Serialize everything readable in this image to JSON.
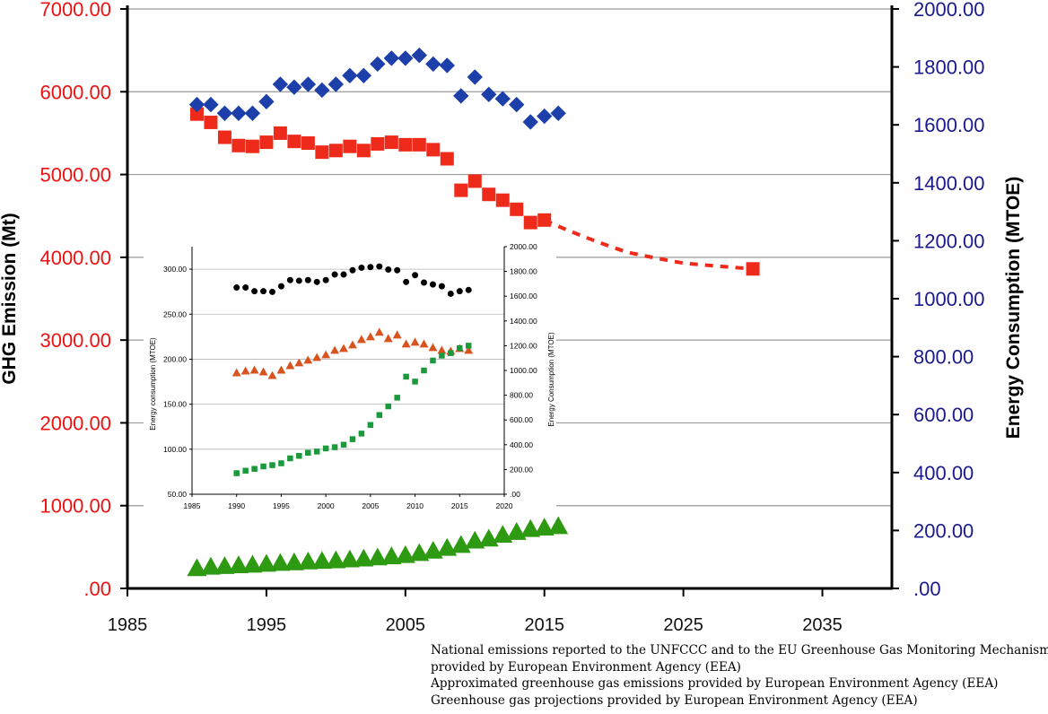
{
  "chart_data": [
    {
      "type": "scatter",
      "xlim": [
        1985,
        2040
      ],
      "x_ticks": [
        "1985",
        "1995",
        "2005",
        "2015",
        "2025",
        "2035"
      ],
      "y_left": {
        "label": "GHG Emission (Mt)",
        "lim": [
          0,
          7000
        ],
        "ticks": [
          ".00",
          "1000.00",
          "2000.00",
          "3000.00",
          "4000.00",
          "5000.00",
          "6000.00",
          "7000.00"
        ],
        "color": "#ee1111"
      },
      "y_right": {
        "label": "Energy Consumption (MTOE)",
        "lim": [
          0,
          2000
        ],
        "ticks": [
          ".00",
          "200.00",
          "400.00",
          "600.00",
          "800.00",
          "1000.00",
          "1200.00",
          "1400.00",
          "1600.00",
          "1800.00",
          "2000.00"
        ],
        "color": "#1a1a8c"
      },
      "grid": "horizontal",
      "series": [
        {
          "axis": "left",
          "marker": "square",
          "color": "#ee2a1a",
          "points": [
            [
              1990,
              5730
            ],
            [
              1991,
              5630
            ],
            [
              1992,
              5450
            ],
            [
              1993,
              5350
            ],
            [
              1994,
              5340
            ],
            [
              1995,
              5390
            ],
            [
              1996,
              5500
            ],
            [
              1997,
              5400
            ],
            [
              1998,
              5380
            ],
            [
              1999,
              5270
            ],
            [
              2000,
              5290
            ],
            [
              2001,
              5340
            ],
            [
              2002,
              5290
            ],
            [
              2003,
              5370
            ],
            [
              2004,
              5390
            ],
            [
              2005,
              5360
            ],
            [
              2006,
              5360
            ],
            [
              2007,
              5300
            ],
            [
              2008,
              5190
            ],
            [
              2009,
              4810
            ],
            [
              2010,
              4920
            ],
            [
              2011,
              4760
            ],
            [
              2012,
              4690
            ],
            [
              2013,
              4580
            ],
            [
              2014,
              4420
            ],
            [
              2015,
              4450
            ]
          ]
        },
        {
          "axis": "left",
          "marker": "square",
          "color": "#ee2a1a",
          "points": [
            [
              2030,
              3860
            ]
          ]
        },
        {
          "axis": "left",
          "marker": "dashed-line",
          "color": "#ee2a1a",
          "points": [
            [
              2015,
              4450
            ],
            [
              2018,
              4240
            ],
            [
              2021,
              4060
            ],
            [
              2025,
              3930
            ],
            [
              2030,
              3860
            ]
          ]
        },
        {
          "axis": "right",
          "marker": "diamond",
          "color": "#1c3faa",
          "points": [
            [
              1990,
              1670
            ],
            [
              1991,
              1670
            ],
            [
              1992,
              1640
            ],
            [
              1993,
              1640
            ],
            [
              1994,
              1640
            ],
            [
              1995,
              1680
            ],
            [
              1996,
              1740
            ],
            [
              1997,
              1730
            ],
            [
              1998,
              1740
            ],
            [
              1999,
              1720
            ],
            [
              2000,
              1740
            ],
            [
              2001,
              1770
            ],
            [
              2002,
              1770
            ],
            [
              2003,
              1810
            ],
            [
              2004,
              1830
            ],
            [
              2005,
              1830
            ],
            [
              2006,
              1840
            ],
            [
              2007,
              1810
            ],
            [
              2008,
              1805
            ],
            [
              2009,
              1700
            ],
            [
              2010,
              1765
            ],
            [
              2011,
              1705
            ],
            [
              2012,
              1690
            ],
            [
              2013,
              1670
            ],
            [
              2014,
              1610
            ],
            [
              2015,
              1630
            ],
            [
              2016,
              1640
            ]
          ]
        },
        {
          "axis": "right",
          "marker": "triangle",
          "color": "#2e9a12",
          "points": [
            [
              1990,
              70
            ],
            [
              1991,
              75
            ],
            [
              1992,
              77
            ],
            [
              1993,
              80
            ],
            [
              1994,
              82
            ],
            [
              1995,
              85
            ],
            [
              1996,
              88
            ],
            [
              1997,
              90
            ],
            [
              1998,
              93
            ],
            [
              1999,
              95
            ],
            [
              2000,
              97
            ],
            [
              2001,
              100
            ],
            [
              2002,
              103
            ],
            [
              2003,
              107
            ],
            [
              2004,
              111
            ],
            [
              2005,
              115
            ],
            [
              2006,
              122
            ],
            [
              2007,
              130
            ],
            [
              2008,
              140
            ],
            [
              2009,
              150
            ],
            [
              2010,
              165
            ],
            [
              2011,
              172
            ],
            [
              2012,
              185
            ],
            [
              2013,
              195
            ],
            [
              2014,
              205
            ],
            [
              2015,
              210
            ],
            [
              2016,
              215
            ]
          ]
        }
      ]
    },
    {
      "type": "scatter",
      "xlim": [
        1985,
        2020
      ],
      "x_ticks": [
        "1985",
        "1990",
        "1995",
        "2000",
        "2005",
        "2010",
        "2015",
        "2020"
      ],
      "y_left": {
        "label": "Energy consumption (MTOE)",
        "lim": [
          50,
          325
        ],
        "ticks": [
          "50.00",
          "100.00",
          "150.00",
          "200.00",
          "250.00",
          "300.00"
        ]
      },
      "y_right": {
        "label": "Energy Consumption (MTOE)",
        "lim": [
          0,
          2000
        ],
        "ticks": [
          ".00",
          "200.00",
          "400.00",
          "600.00",
          "800.00",
          "1000.00",
          "1200.00",
          "1400.00",
          "1600.00",
          "1800.00",
          "2000.00"
        ]
      },
      "grid": "horizontal",
      "series": [
        {
          "axis": "right",
          "marker": "circle",
          "color": "#000000",
          "points": [
            [
              1990,
              1670
            ],
            [
              1991,
              1670
            ],
            [
              1992,
              1640
            ],
            [
              1993,
              1640
            ],
            [
              1994,
              1635
            ],
            [
              1995,
              1680
            ],
            [
              1996,
              1730
            ],
            [
              1997,
              1725
            ],
            [
              1998,
              1730
            ],
            [
              1999,
              1715
            ],
            [
              2000,
              1730
            ],
            [
              2001,
              1775
            ],
            [
              2002,
              1775
            ],
            [
              2003,
              1810
            ],
            [
              2004,
              1830
            ],
            [
              2005,
              1835
            ],
            [
              2006,
              1840
            ],
            [
              2007,
              1815
            ],
            [
              2008,
              1810
            ],
            [
              2009,
              1715
            ],
            [
              2010,
              1770
            ],
            [
              2011,
              1710
            ],
            [
              2012,
              1695
            ],
            [
              2013,
              1680
            ],
            [
              2014,
              1620
            ],
            [
              2015,
              1640
            ],
            [
              2016,
              1650
            ]
          ]
        },
        {
          "axis": "left",
          "marker": "triangle",
          "color": "#d9531e",
          "points": [
            [
              1990,
              185
            ],
            [
              1991,
              187
            ],
            [
              1992,
              188
            ],
            [
              1993,
              186
            ],
            [
              1994,
              182
            ],
            [
              1995,
              188
            ],
            [
              1996,
              193
            ],
            [
              1997,
              196
            ],
            [
              1998,
              199
            ],
            [
              1999,
              202
            ],
            [
              2000,
              205
            ],
            [
              2001,
              210
            ],
            [
              2002,
              212
            ],
            [
              2003,
              216
            ],
            [
              2004,
              222
            ],
            [
              2005,
              225
            ],
            [
              2006,
              230
            ],
            [
              2007,
              223
            ],
            [
              2008,
              227
            ],
            [
              2009,
              217
            ],
            [
              2010,
              219
            ],
            [
              2011,
              217
            ],
            [
              2012,
              213
            ],
            [
              2013,
              210
            ],
            [
              2014,
              209
            ],
            [
              2015,
              212
            ],
            [
              2016,
              210
            ]
          ]
        },
        {
          "axis": "right",
          "marker": "square",
          "color": "#1b9a3c",
          "points": [
            [
              1990,
              170
            ],
            [
              1991,
              190
            ],
            [
              1992,
              205
            ],
            [
              1993,
              225
            ],
            [
              1994,
              235
            ],
            [
              1995,
              250
            ],
            [
              1996,
              290
            ],
            [
              1997,
              310
            ],
            [
              1998,
              335
            ],
            [
              1999,
              345
            ],
            [
              2000,
              370
            ],
            [
              2001,
              380
            ],
            [
              2002,
              400
            ],
            [
              2003,
              445
            ],
            [
              2004,
              490
            ],
            [
              2005,
              560
            ],
            [
              2006,
              640
            ],
            [
              2007,
              710
            ],
            [
              2008,
              780
            ],
            [
              2009,
              950
            ],
            [
              2010,
              910
            ],
            [
              2011,
              1000
            ],
            [
              2012,
              1080
            ],
            [
              2013,
              1120
            ],
            [
              2014,
              1140
            ],
            [
              2015,
              1180
            ],
            [
              2016,
              1200
            ]
          ]
        }
      ]
    }
  ],
  "notes": [
    "National emissions reported to the UNFCCC and to the EU Greenhouse Gas Monitoring Mechanism",
    "provided by European Environment Agency (EEA)",
    "Approximated greenhouse gas emissions provided by European Environment Agency (EEA)",
    "Greenhouse gas projections provided by European Environment Agency (EEA)"
  ]
}
